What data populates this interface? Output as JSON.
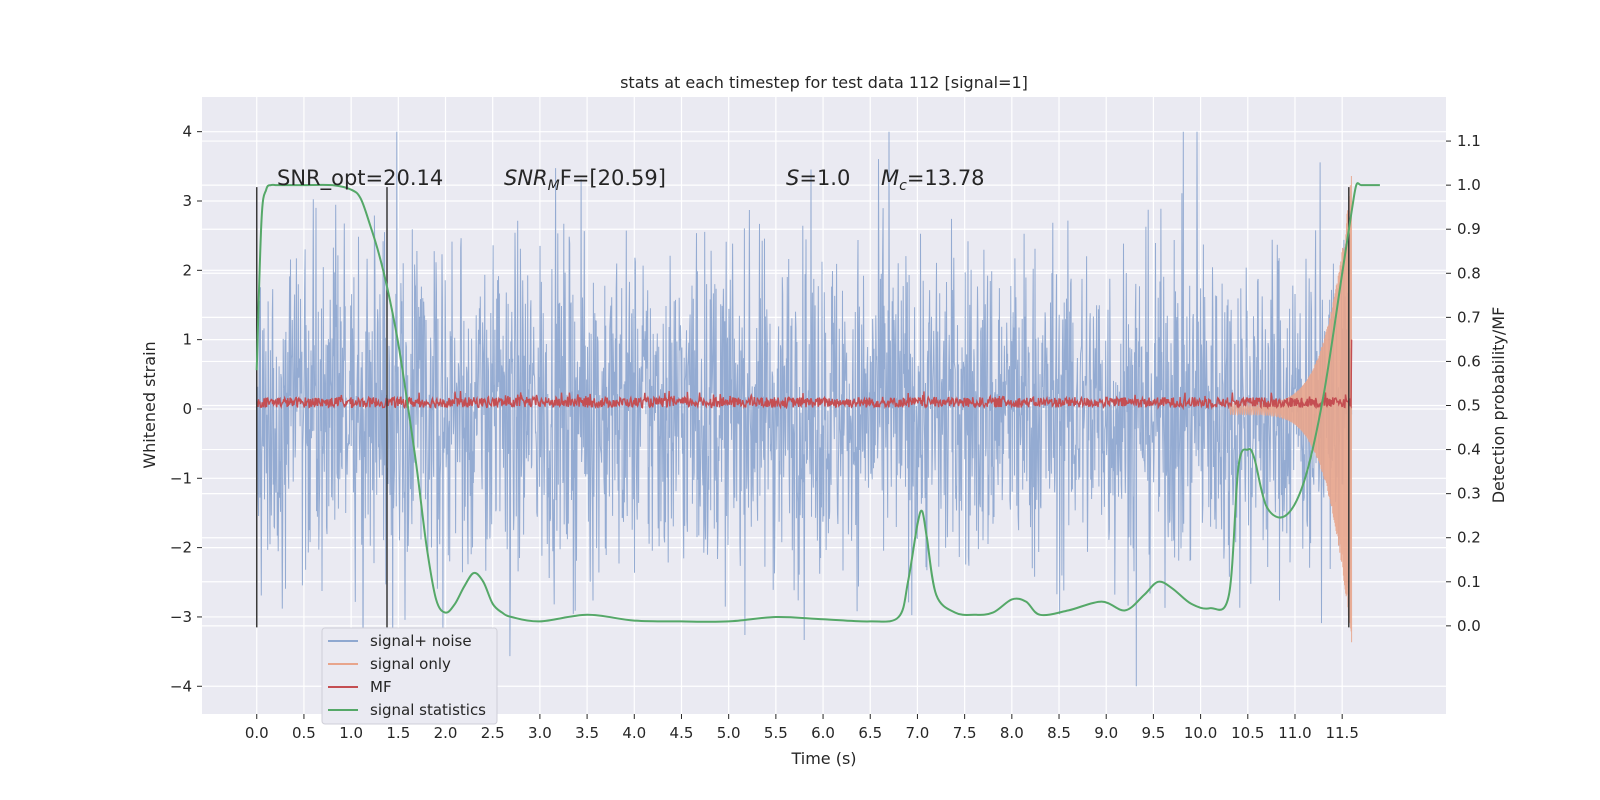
{
  "chart_data": {
    "type": "line",
    "title": "stats at each timestep for test data 112 [signal=1]",
    "xlabel": "Time (s)",
    "ylabel_left": "Whitened strain",
    "ylabel_right": "Detection probability/MF",
    "xlim": [
      -0.58,
      12.6
    ],
    "ylim_left": [
      -4.4,
      4.5
    ],
    "ylim_right": [
      -0.2,
      1.2
    ],
    "grid": true,
    "x_ticks": [
      "0.0",
      "0.5",
      "1.0",
      "1.5",
      "2.0",
      "2.5",
      "3.0",
      "3.5",
      "4.0",
      "4.5",
      "5.0",
      "5.5",
      "6.0",
      "6.5",
      "7.0",
      "7.5",
      "8.0",
      "8.5",
      "9.0",
      "9.5",
      "10.0",
      "10.5",
      "11.0",
      "11.5"
    ],
    "y_ticks_left": [
      "4",
      "3",
      "2",
      "1",
      "0",
      "−1",
      "−2",
      "−3",
      "−4"
    ],
    "y_ticks_right": [
      "1.1",
      "1.0",
      "0.9",
      "0.8",
      "0.7",
      "0.6",
      "0.5",
      "0.4",
      "0.3",
      "0.2",
      "0.1",
      "0.0"
    ],
    "annotations": {
      "snr_opt": "SNR_opt=20.14",
      "snr_mf_sym": "SNR",
      "snr_mf_sub": "M",
      "snr_mf_rest": "F=[20.59]",
      "s_sym": "S",
      "s_rest": "=1.0",
      "mc_sym": "M",
      "mc_sub": "c",
      "mc_rest": "=13.78"
    },
    "vertical_lines_x": [
      0.0,
      1.38,
      11.57
    ],
    "legend_position": "lower-left",
    "legend": [
      "signal+ noise",
      "signal only",
      "MF",
      "signal statistics"
    ],
    "colors": {
      "noise": "#8fa8d0",
      "signal": "#e8a58c",
      "mf": "#c44e52",
      "stats": "#55a868",
      "vline": "#3a3a3a",
      "plot_bg": "#eaeaf2",
      "grid": "#ffffff"
    },
    "series": [
      {
        "name": "signal statistics",
        "axis": "right",
        "x": [
          0.0,
          0.05,
          0.1,
          0.15,
          0.2,
          0.3,
          0.5,
          0.8,
          1.0,
          1.1,
          1.2,
          1.3,
          1.4,
          1.5,
          1.6,
          1.7,
          1.8,
          1.9,
          2.0,
          2.1,
          2.2,
          2.3,
          2.4,
          2.5,
          2.6,
          2.7,
          3.0,
          3.5,
          4.0,
          4.5,
          5.0,
          5.5,
          6.0,
          6.5,
          6.8,
          6.9,
          7.0,
          7.05,
          7.1,
          7.2,
          7.4,
          7.6,
          7.8,
          8.0,
          8.15,
          8.3,
          8.6,
          8.95,
          9.2,
          9.4,
          9.55,
          9.7,
          9.9,
          10.1,
          10.3,
          10.4,
          10.5,
          10.57,
          10.7,
          10.9,
          11.1,
          11.3,
          11.5,
          11.6,
          11.65,
          11.7,
          11.8,
          11.9
        ],
        "y": [
          0.58,
          0.92,
          0.99,
          1.0,
          1.0,
          1.0,
          1.0,
          1.0,
          0.99,
          0.97,
          0.91,
          0.84,
          0.75,
          0.64,
          0.5,
          0.35,
          0.18,
          0.06,
          0.03,
          0.05,
          0.09,
          0.12,
          0.1,
          0.05,
          0.03,
          0.02,
          0.01,
          0.025,
          0.012,
          0.01,
          0.01,
          0.02,
          0.015,
          0.01,
          0.02,
          0.1,
          0.23,
          0.26,
          0.2,
          0.07,
          0.03,
          0.025,
          0.03,
          0.06,
          0.055,
          0.025,
          0.035,
          0.055,
          0.035,
          0.07,
          0.1,
          0.085,
          0.05,
          0.04,
          0.07,
          0.36,
          0.4,
          0.38,
          0.27,
          0.25,
          0.33,
          0.52,
          0.8,
          0.94,
          1.0,
          1.0,
          1.0,
          1.0
        ]
      },
      {
        "name": "MF",
        "axis": "left",
        "baseline": 0.05,
        "noise_amplitude": 0.15,
        "spikes": [
          {
            "x": 11.62,
            "y": 1.0
          }
        ]
      },
      {
        "name": "signal only",
        "axis": "left",
        "x_start": 10.3,
        "x_peak": 11.6,
        "peak_amplitude": 3.4,
        "end_amplitude": 0.5
      },
      {
        "name": "signal+ noise",
        "axis": "left",
        "x_range": [
          0.0,
          11.6
        ],
        "typical_amplitude": 1.2,
        "max_abs": 4.0
      }
    ]
  }
}
